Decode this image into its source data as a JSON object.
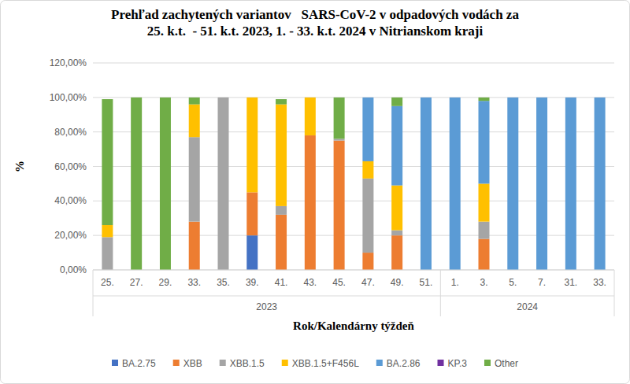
{
  "chart_data": {
    "type": "bar",
    "stacked": true,
    "title": "Prehľad zachytených variantov   SARS-CoV-2 v odpadových vodách za\n25. k.t.  - 51. k.t. 2023, 1. - 33. k.t. 2024 v Nitrianskom kraji",
    "y_label": "%",
    "x_label": "Rok/Kalendárny týždeň",
    "categories": [
      "25.",
      "27.",
      "29.",
      "33.",
      "35.",
      "39.",
      "41.",
      "43.",
      "45.",
      "47.",
      "49.",
      "51.",
      "1.",
      "3.",
      "5.",
      "7.",
      "31.",
      "33."
    ],
    "category_groups": [
      {
        "label": "2023",
        "categories": 12
      },
      {
        "label": "2024",
        "categories": 6
      }
    ],
    "series": [
      {
        "name": "BA.2.75",
        "color": "#4472c4",
        "values": [
          0,
          0,
          0,
          0,
          0,
          20,
          0,
          0,
          0,
          0,
          0,
          0,
          0,
          0,
          0,
          0,
          0,
          0
        ]
      },
      {
        "name": "XBB",
        "color": "#ed7d31",
        "values": [
          0,
          0,
          0,
          28,
          0,
          25,
          32,
          78,
          75,
          10,
          20,
          0,
          0,
          18,
          0,
          0,
          0,
          0
        ]
      },
      {
        "name": "XBB.1.5",
        "color": "#a5a5a5",
        "values": [
          19,
          0,
          0,
          49,
          100,
          0,
          5,
          0,
          1,
          43,
          3,
          0,
          0,
          10,
          0,
          0,
          0,
          0
        ]
      },
      {
        "name": "XBB.1.5+F456L",
        "color": "#ffc000",
        "values": [
          7,
          0,
          0,
          19,
          0,
          55,
          59,
          22,
          0,
          10,
          26,
          0,
          0,
          22,
          0,
          0,
          0,
          0
        ]
      },
      {
        "name": "BA.2.86",
        "color": "#5b9bd5",
        "values": [
          0,
          0,
          0,
          0,
          0,
          0,
          0,
          0,
          0,
          37,
          46,
          100,
          100,
          48,
          100,
          100,
          100,
          100
        ]
      },
      {
        "name": "KP.3",
        "color": "#7030a0",
        "values": [
          0,
          0,
          0,
          0,
          0,
          0,
          0,
          0,
          0,
          0,
          0,
          0,
          0,
          0,
          0,
          0,
          0,
          0
        ]
      },
      {
        "name": "Other",
        "color": "#70ad47",
        "values": [
          73,
          100,
          100,
          4,
          0,
          0,
          3,
          0,
          24,
          0,
          5,
          0,
          0,
          2,
          0,
          0,
          0,
          0
        ]
      }
    ],
    "ylim": [
      0,
      120
    ],
    "yticks": [
      {
        "value": 0,
        "label": "0,00%"
      },
      {
        "value": 20,
        "label": "20,00%"
      },
      {
        "value": 40,
        "label": "40,00%"
      },
      {
        "value": 60,
        "label": "60,00%"
      },
      {
        "value": 80,
        "label": "80,00%"
      },
      {
        "value": 100,
        "label": "100,00%"
      },
      {
        "value": 120,
        "label": "120,00%"
      }
    ],
    "grid": true,
    "legend": "bottom"
  }
}
